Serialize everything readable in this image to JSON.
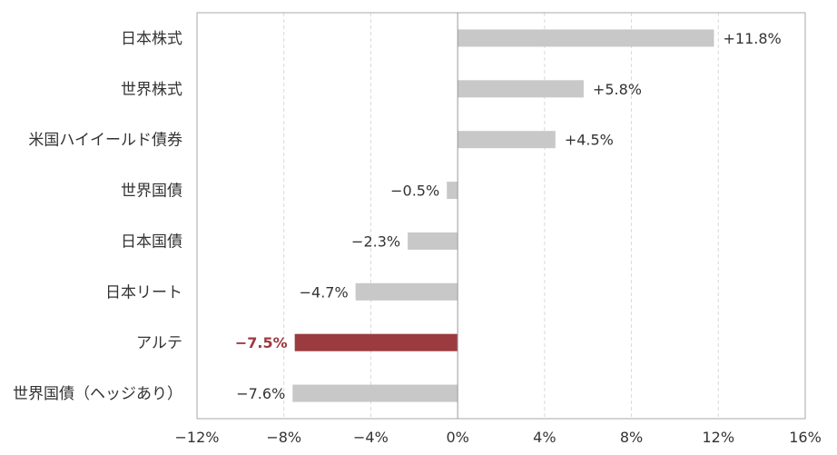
{
  "chart_data": {
    "type": "bar",
    "orientation": "horizontal",
    "title": "",
    "xlabel": "",
    "ylabel": "",
    "xlim": [
      -12,
      16
    ],
    "x_ticks": [
      -12,
      -8,
      -4,
      0,
      4,
      8,
      12,
      16
    ],
    "x_tick_labels": [
      "−12%",
      "−8%",
      "−4%",
      "0%",
      "4%",
      "8%",
      "12%",
      "16%"
    ],
    "grid": "vertical-dashed",
    "legend": "none",
    "categories": [
      "日本株式",
      "世界株式",
      "米国ハイイールド債券",
      "世界国債",
      "日本国債",
      "日本リート",
      "アルテ",
      "世界国債（ヘッジあり）"
    ],
    "values": [
      11.8,
      5.8,
      4.5,
      -0.5,
      -2.3,
      -4.7,
      -7.5,
      -7.6
    ],
    "value_labels": [
      "+11.8%",
      "+5.8%",
      "+4.5%",
      "−0.5%",
      "−2.3%",
      "−4.7%",
      "−7.5%",
      "−7.6%"
    ],
    "highlight": [
      "アルテ"
    ],
    "colors": {
      "bar": "#c8c8c8",
      "highlight": "#9b3b3f",
      "highlight_text": "#9b3b3f"
    }
  }
}
